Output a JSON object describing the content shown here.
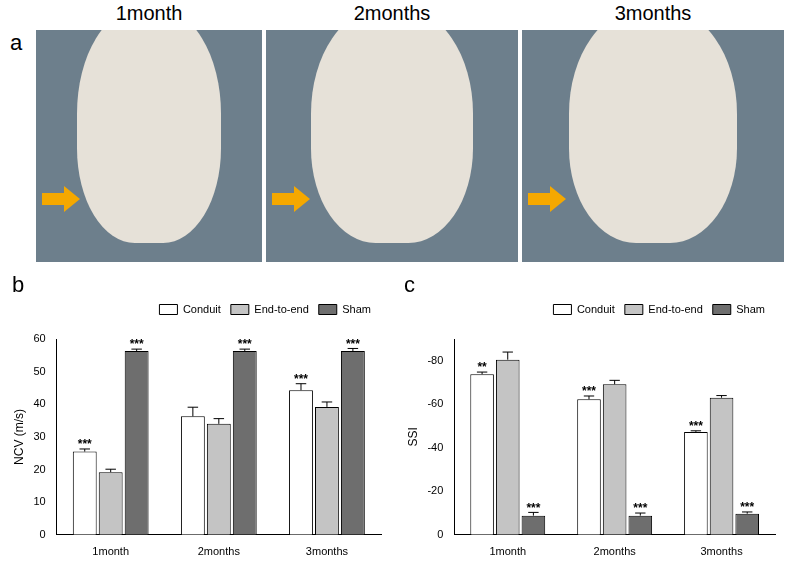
{
  "figure": {
    "panel_a": {
      "panel_label": "a",
      "photos": [
        "1month",
        "2months",
        "3months"
      ]
    }
  },
  "chart_data": [
    {
      "type": "bar",
      "panel_label": "b",
      "y_label": "NCV (m/s)",
      "categories": [
        "1month",
        "2months",
        "3months"
      ],
      "series": [
        {
          "name": "Conduit",
          "color": "#ffffff",
          "values": [
            25.5,
            36.3,
            44.3
          ],
          "errors": [
            0.8,
            2.8,
            2.0
          ],
          "significance": [
            "***",
            null,
            "***"
          ]
        },
        {
          "name": "End-to-end",
          "color": "#c4c4c4",
          "values": [
            19.2,
            34.0,
            39.2
          ],
          "errors": [
            0.9,
            1.6,
            1.5
          ],
          "significance": [
            null,
            null,
            null
          ]
        },
        {
          "name": "Sham",
          "color": "#6e6e6e",
          "values": [
            56.3,
            56.3,
            56.3
          ],
          "errors": [
            0.6,
            0.6,
            0.8
          ],
          "significance": [
            "***",
            "***",
            "***"
          ]
        }
      ],
      "ylim": [
        0,
        60
      ],
      "yticks": [
        0,
        10,
        20,
        30,
        40,
        50,
        60
      ],
      "grid": false,
      "legend": "upper right"
    },
    {
      "type": "bar",
      "panel_label": "c",
      "y_label": "SSI",
      "categories": [
        "1month",
        "2months",
        "3months"
      ],
      "series": [
        {
          "name": "Conduit",
          "color": "#ffffff",
          "values": [
            -73.8,
            -62.3,
            -47.3
          ],
          "errors": [
            1.0,
            1.5,
            0.5
          ],
          "significance": [
            "**",
            "***",
            "***"
          ]
        },
        {
          "name": "End-to-end",
          "color": "#c4c4c4",
          "values": [
            -80.5,
            -69.2,
            -63.0
          ],
          "errors": [
            3.5,
            1.8,
            1.0
          ],
          "significance": [
            null,
            null,
            null
          ]
        },
        {
          "name": "Sham",
          "color": "#6e6e6e",
          "values": [
            -8.8,
            -8.8,
            -9.7
          ],
          "errors": [
            1.5,
            1.2,
            0.8
          ],
          "significance": [
            "***",
            "***",
            "***"
          ]
        }
      ],
      "ylim": [
        0,
        -90
      ],
      "yticks": [
        0,
        -20,
        -40,
        -60,
        -80
      ],
      "grid": false,
      "legend": "upper right"
    }
  ]
}
